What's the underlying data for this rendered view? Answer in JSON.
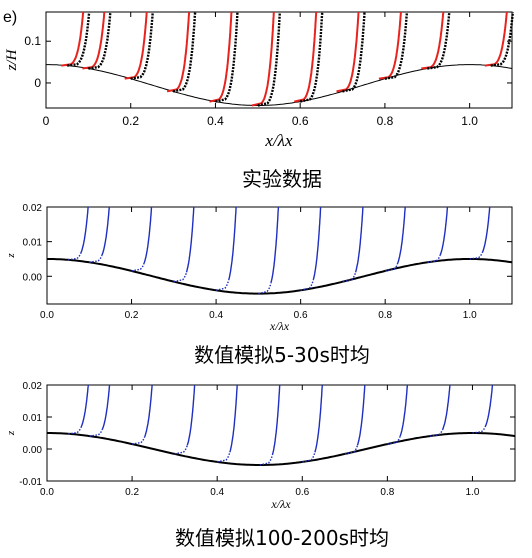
{
  "chart_data": [
    {
      "type": "line",
      "panel_label": "e)",
      "caption": "实验数据",
      "xlabel": "x/λx",
      "ylabel": "z/H",
      "xlim": [
        0,
        1.1
      ],
      "ylim": [
        -0.06,
        0.17
      ],
      "xticks": [
        "0",
        "0.2",
        "0.4",
        "0.6",
        "0.8",
        "1.0"
      ],
      "yticks": [
        "0",
        "0.1"
      ],
      "profile_positions": [
        0.05,
        0.1,
        0.2,
        0.3,
        0.4,
        0.5,
        0.6,
        0.7,
        0.8,
        0.9,
        1.05
      ],
      "wave": {
        "mean": -0.005,
        "amplitude": 0.049,
        "crest_x": 0.0
      },
      "series": [
        {
          "color": "#e8231e",
          "style": "solid"
        },
        {
          "color": "#000000",
          "style": "dotted-thick"
        }
      ]
    },
    {
      "type": "line",
      "caption": "数值模拟5-30s时均",
      "xlabel": "x/λx",
      "ylabel": "z",
      "xlim": [
        0,
        1.1
      ],
      "ylim": [
        -0.008,
        0.02
      ],
      "xticks": [
        "0.0",
        "0.2",
        "0.4",
        "0.6",
        "0.8",
        "1.0"
      ],
      "yticks": [
        "0.00",
        "0.01",
        "0.02"
      ],
      "profile_positions": [
        0.05,
        0.1,
        0.2,
        0.3,
        0.4,
        0.5,
        0.6,
        0.7,
        0.8,
        0.9,
        1.0
      ],
      "wave": {
        "mean": 0.0,
        "amplitude": 0.005,
        "crest_x": 0.0
      },
      "series": [
        {
          "color": "#1f2fbf",
          "style": "solid"
        },
        {
          "color": "#000000",
          "style": "bed"
        }
      ]
    },
    {
      "type": "line",
      "caption": "数值模拟100-200s时均",
      "xlabel": "x/λx",
      "ylabel": "z",
      "xlim": [
        0,
        1.1
      ],
      "ylim": [
        -0.01,
        0.02
      ],
      "xticks": [
        "0.0",
        "0.2",
        "0.4",
        "0.6",
        "0.8",
        "1.0"
      ],
      "yticks": [
        "-0.01",
        "0.00",
        "0.01",
        "0.02"
      ],
      "profile_positions": [
        0.05,
        0.1,
        0.2,
        0.3,
        0.4,
        0.5,
        0.6,
        0.7,
        0.8,
        0.9,
        1.0
      ],
      "wave": {
        "mean": 0.0,
        "amplitude": 0.005,
        "crest_x": 0.0
      },
      "series": [
        {
          "color": "#1f2fbf",
          "style": "solid"
        },
        {
          "color": "#000000",
          "style": "bed"
        }
      ]
    }
  ]
}
